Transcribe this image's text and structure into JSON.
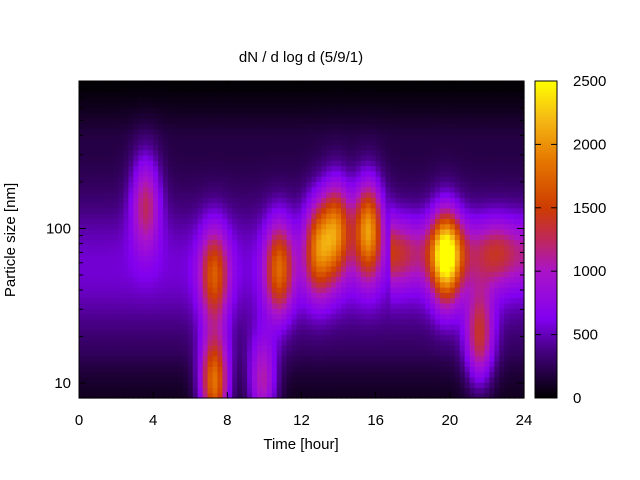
{
  "chart_data": {
    "type": "heatmap",
    "title": "dN / d log d (5/9/1)",
    "xlabel": "Time [hour]",
    "ylabel": "Particle size [nm]",
    "x_range": [
      0,
      24
    ],
    "y_range_log": [
      8,
      900
    ],
    "y_scale": "log",
    "x_ticks": [
      0,
      4,
      8,
      12,
      16,
      20,
      24
    ],
    "x_tick_labels": [
      "0",
      "4",
      "8",
      "12",
      "16",
      "20",
      "24"
    ],
    "y_ticks": [
      10,
      100
    ],
    "y_tick_labels": [
      "10",
      "100"
    ],
    "colorbar": {
      "range": [
        0,
        2500
      ],
      "ticks": [
        0,
        500,
        1000,
        1500,
        2000,
        2500
      ],
      "tick_labels": [
        "0",
        "500",
        "1000",
        "1500",
        "2000",
        "2500"
      ],
      "colormap": "black-purple-red-orange-yellow"
    },
    "features": [
      {
        "time": 3.6,
        "size_nm": 150,
        "peak": 1050
      },
      {
        "time": 7.3,
        "size_nm": 10,
        "peak": 2000
      },
      {
        "time": 7.3,
        "size_nm": 50,
        "peak": 1350
      },
      {
        "time": 9.9,
        "size_nm": 10,
        "peak": 1100
      },
      {
        "time": 10.8,
        "size_nm": 55,
        "peak": 1450
      },
      {
        "time": 12.9,
        "size_nm": 75,
        "peak": 1500
      },
      {
        "time": 13.9,
        "size_nm": 100,
        "peak": 1600
      },
      {
        "time": 15.6,
        "size_nm": 100,
        "peak": 1900
      },
      {
        "time": 19.8,
        "size_nm": 65,
        "peak": 1750
      },
      {
        "time": 21.6,
        "size_nm": 20,
        "peak": 1250
      }
    ]
  }
}
